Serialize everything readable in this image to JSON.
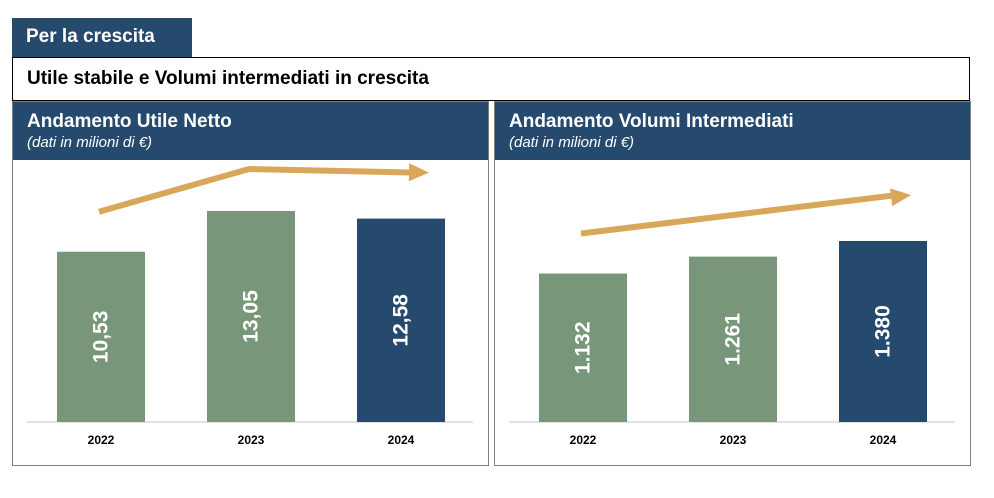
{
  "tab_label": "Per la crescita",
  "subtitle": "Utile stabile e Volumi intermediati in crescita",
  "colors": {
    "navy": "#264a6e",
    "green": "#77967a",
    "arrow": "#d9a75a"
  },
  "chart_data": [
    {
      "type": "bar",
      "title": "Andamento Utile Netto",
      "note": "(dati in milioni di €)",
      "categories": [
        "2022",
        "2023",
        "2024"
      ],
      "values": [
        10.53,
        13.05,
        12.58
      ],
      "labels": [
        "10,53",
        "13,05",
        "12,58"
      ],
      "bar_colors": [
        "#77967a",
        "#77967a",
        "#264a6e"
      ],
      "trend_arrow": true
    },
    {
      "type": "bar",
      "title": "Andamento Volumi Intermediati",
      "note": "(dati in milioni di €)",
      "categories": [
        "2022",
        "2023",
        "2024"
      ],
      "values": [
        1132,
        1261,
        1380
      ],
      "labels": [
        "1.132",
        "1.261",
        "1.380"
      ],
      "bar_colors": [
        "#77967a",
        "#77967a",
        "#264a6e"
      ],
      "trend_arrow": true
    }
  ]
}
